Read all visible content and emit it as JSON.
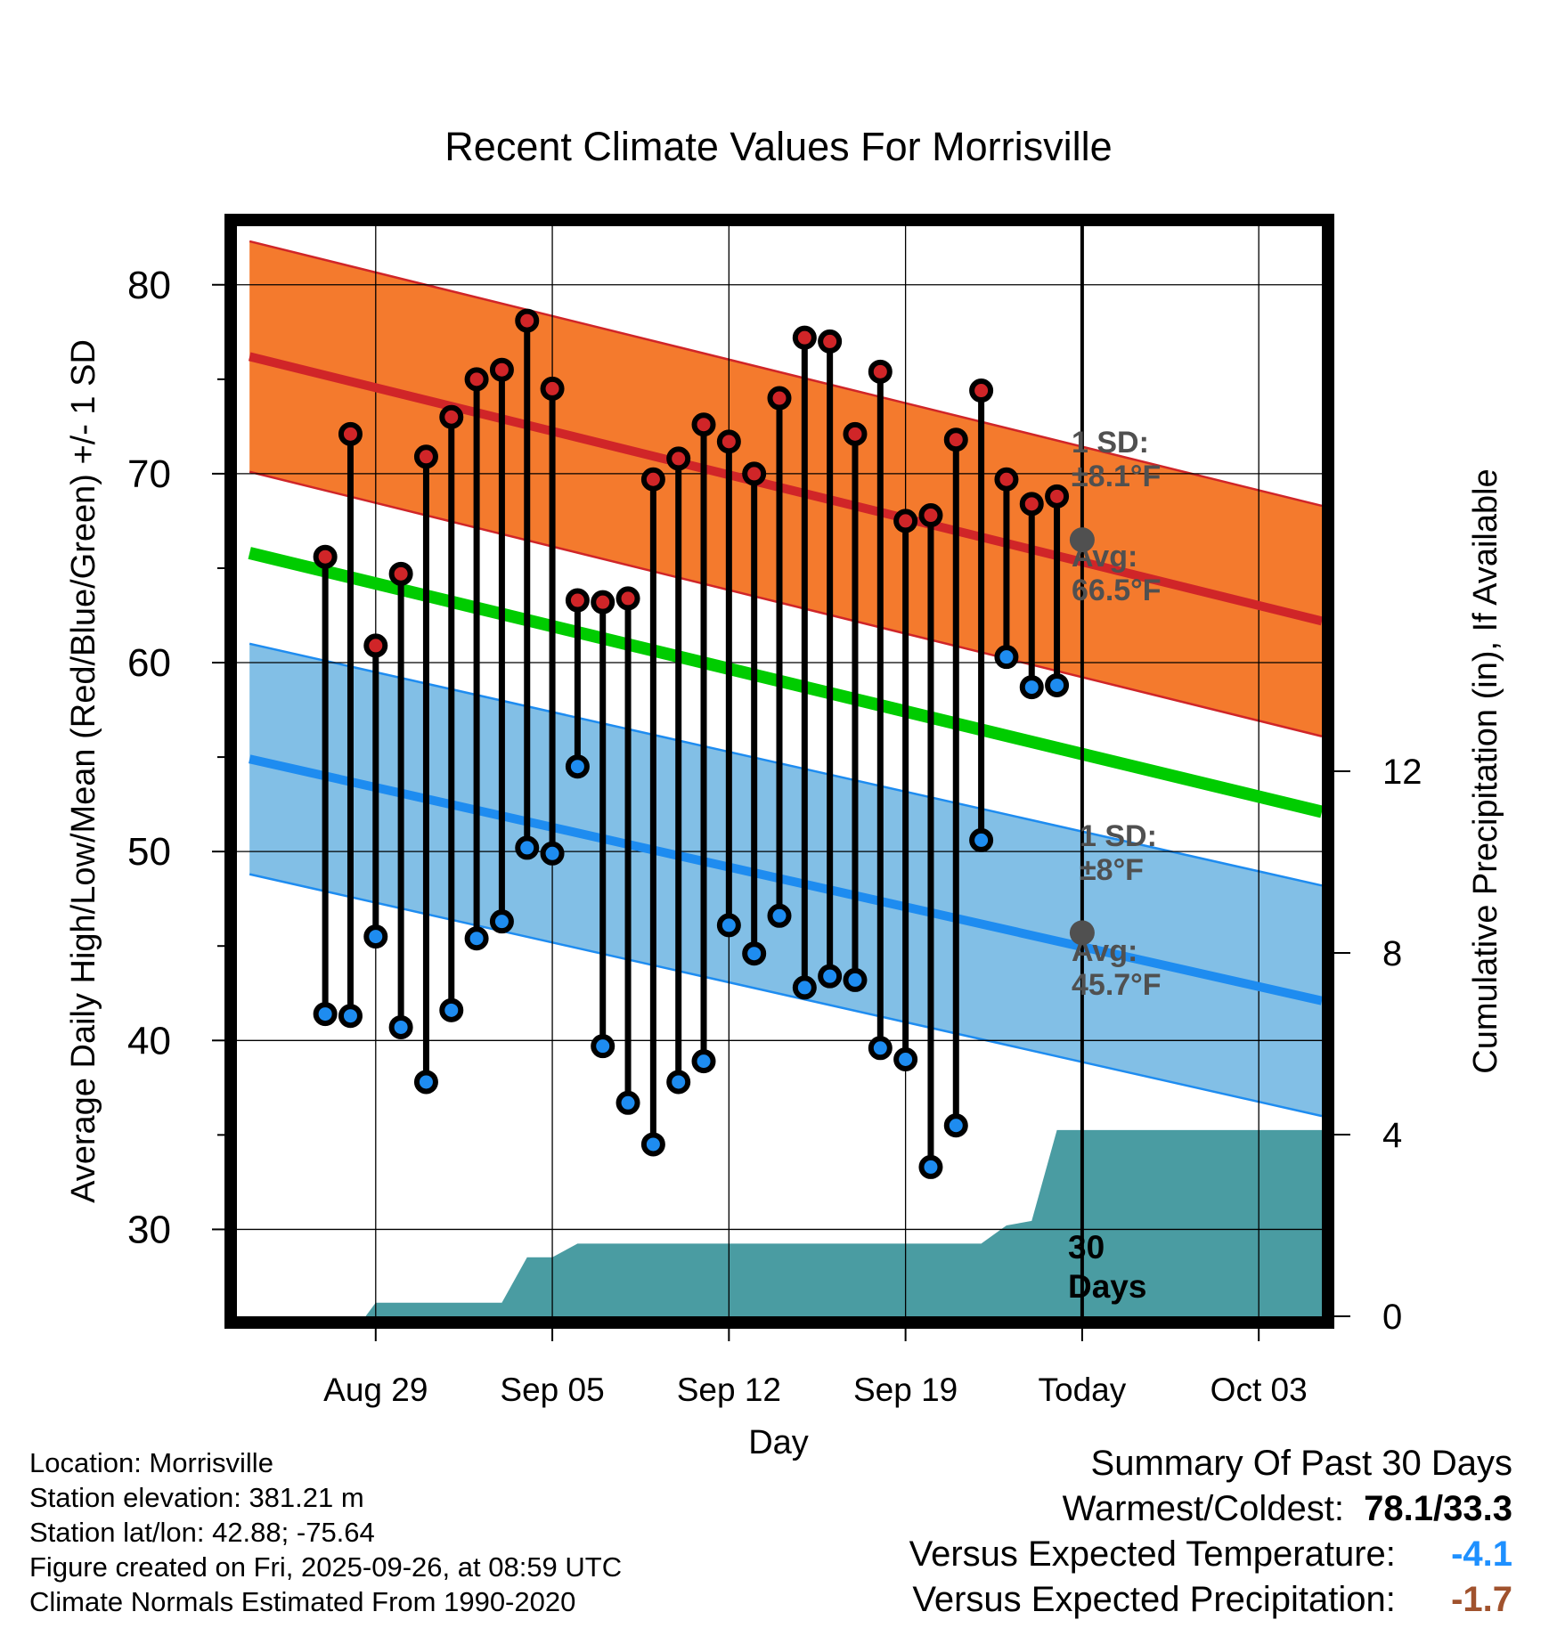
{
  "chart_data": {
    "type": "line",
    "title": "Recent Climate Values For Morrisville",
    "xlabel": "Day",
    "ylabel": "Average Daily High/Low/Mean (Red/Blue/Green) +/- 1 SD",
    "y2label": "Cumulative Precipitation (in), If Available",
    "ylim": [
      25.4,
      83.1
    ],
    "y2lim": [
      0,
      24
    ],
    "yticks": [
      30,
      40,
      50,
      60,
      70,
      80
    ],
    "y2ticks": [
      0,
      4,
      8,
      12
    ],
    "x_range_days": [
      -33.5,
      9.5
    ],
    "xticks": [
      {
        "day": -28,
        "label": "Aug 29"
      },
      {
        "day": -21,
        "label": "Sep 05"
      },
      {
        "day": -14,
        "label": "Sep 12"
      },
      {
        "day": -7,
        "label": "Sep 19"
      },
      {
        "day": 0,
        "label": "Today"
      },
      {
        "day": 7,
        "label": "Oct 03"
      }
    ],
    "normals": {
      "days": [
        -33,
        9.5
      ],
      "high_avg": [
        76.2,
        62.2
      ],
      "high_sd": 6.1,
      "low_avg": [
        54.9,
        42.1
      ],
      "low_sd": 6.1,
      "mean_avg": [
        65.8,
        52.1
      ]
    },
    "observed": {
      "days": [
        -30,
        -29,
        -28,
        -27,
        -26,
        -25,
        -24,
        -23,
        -22,
        -21,
        -20,
        -19,
        -18,
        -17,
        -16,
        -15,
        -14,
        -13,
        -12,
        -11,
        -10,
        -9,
        -8,
        -7,
        -6,
        -5,
        -4,
        -3,
        -2,
        -1
      ],
      "highs": [
        65.6,
        72.1,
        60.9,
        64.7,
        70.9,
        73.0,
        75.0,
        75.5,
        78.1,
        74.5,
        63.3,
        63.2,
        63.4,
        69.7,
        70.8,
        72.6,
        71.7,
        70.0,
        74.0,
        77.2,
        77.0,
        72.1,
        75.4,
        67.5,
        67.8,
        71.8,
        74.4,
        69.7,
        68.4,
        68.8
      ],
      "lows": [
        41.4,
        41.3,
        45.5,
        40.7,
        37.8,
        41.6,
        45.4,
        46.3,
        50.2,
        49.9,
        54.5,
        39.7,
        36.7,
        34.5,
        37.8,
        38.9,
        46.1,
        44.6,
        46.6,
        42.8,
        43.4,
        43.2,
        39.6,
        39.0,
        33.3,
        35.5,
        50.6,
        60.3,
        58.7,
        58.8
      ]
    },
    "precipitation": {
      "days": [
        -31,
        -28.4,
        -28,
        -23,
        -22,
        -21,
        -20,
        -4,
        -3,
        -2,
        -1,
        0,
        9.5
      ],
      "cumulative": [
        0,
        0,
        0.3,
        0.3,
        1.3,
        1.3,
        1.6,
        1.6,
        2.0,
        2.1,
        4.1,
        4.1,
        4.1
      ]
    },
    "annotations": {
      "high_sd": "1 SD: ±8.1°F",
      "high_avg": "Avg: 66.5°F",
      "low_sd": "1 SD: ±8°F",
      "low_avg": "Avg: 45.7°F",
      "window": "30 Days",
      "today_high": 66.5,
      "today_low": 45.7
    }
  },
  "colors": {
    "high_band": "#F47A2D",
    "high_line": "#D02528",
    "low_band": "#82BFE6",
    "low_line": "#1E8CF0",
    "mean_line": "#00CC00",
    "precip": "#4A9CA2",
    "annotation": "#505050",
    "high_dot": "#D02528",
    "low_dot": "#1E8CF0",
    "versus_temp": "#1E90FF",
    "versus_precip": "#A0522D"
  },
  "info": {
    "location": "Location: Morrisville",
    "elevation": "Station elevation: 381.21 m",
    "latlon": "Station lat/lon: 42.88; -75.64",
    "created": "Figure created on Fri, 2025-09-26, at 08:59 UTC",
    "normals": "Climate Normals Estimated From 1990-2020"
  },
  "summary": {
    "title": "Summary Of Past 30 Days",
    "warmest_label": "Warmest/Coldest:",
    "warmest_value": "78.1/33.3",
    "temp_label": "Versus Expected Temperature:",
    "temp_value": "-4.1",
    "precip_label": "Versus Expected Precipitation:",
    "precip_value": "-1.7"
  }
}
